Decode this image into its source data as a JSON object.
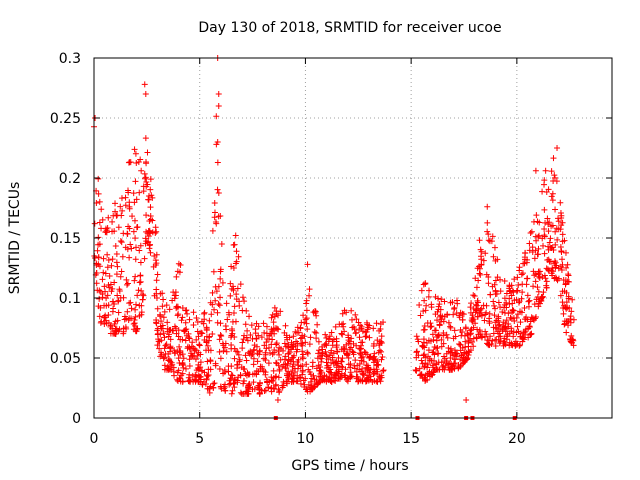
{
  "chart_data": {
    "type": "scatter",
    "title": "Day 130 of 2018, SRMTID for receiver ucoe",
    "xlabel": "GPS time / hours",
    "ylabel": "SRMTID / TECUs",
    "xlim": [
      0,
      24.5
    ],
    "ylim": [
      0,
      0.3
    ],
    "xticks": [
      0,
      5,
      10,
      15,
      20
    ],
    "xtick_labels": [
      "0",
      "5",
      "10",
      "15",
      "20"
    ],
    "yticks": [
      0,
      0.05,
      0.1,
      0.15,
      0.2,
      0.25,
      0.3
    ],
    "ytick_labels": [
      "0",
      "0.05",
      "0.1",
      "0.15",
      "0.2",
      "0.25",
      "0.3"
    ],
    "grid": true,
    "marker": "+",
    "color": "#ff0000",
    "series": [
      {
        "name": "SRMTID",
        "description_values": "Sampled envelope of the dense scatter: [hour, lower, upper] bands",
        "bands": [
          [
            0.0,
            0.12,
            0.26
          ],
          [
            0.3,
            0.08,
            0.19
          ],
          [
            0.6,
            0.07,
            0.17
          ],
          [
            1.0,
            0.07,
            0.18
          ],
          [
            1.4,
            0.07,
            0.19
          ],
          [
            1.7,
            0.08,
            0.22
          ],
          [
            2.0,
            0.07,
            0.26
          ],
          [
            2.3,
            0.09,
            0.2
          ],
          [
            2.5,
            0.15,
            0.25
          ],
          [
            2.8,
            0.12,
            0.2
          ],
          [
            3.0,
            0.06,
            0.14
          ],
          [
            3.3,
            0.04,
            0.1
          ],
          [
            3.6,
            0.04,
            0.09
          ],
          [
            4.0,
            0.03,
            0.14
          ],
          [
            4.5,
            0.03,
            0.1
          ],
          [
            5.0,
            0.03,
            0.08
          ],
          [
            5.5,
            0.02,
            0.1
          ],
          [
            5.8,
            0.03,
            0.27
          ],
          [
            6.2,
            0.02,
            0.09
          ],
          [
            6.7,
            0.02,
            0.16
          ],
          [
            7.2,
            0.02,
            0.09
          ],
          [
            7.7,
            0.02,
            0.08
          ],
          [
            8.2,
            0.02,
            0.08
          ],
          [
            8.7,
            0.02,
            0.1
          ],
          [
            9.2,
            0.03,
            0.07
          ],
          [
            9.7,
            0.03,
            0.08
          ],
          [
            10.2,
            0.02,
            0.12
          ],
          [
            10.7,
            0.03,
            0.07
          ],
          [
            11.2,
            0.03,
            0.07
          ],
          [
            11.7,
            0.03,
            0.09
          ],
          [
            12.2,
            0.03,
            0.09
          ],
          [
            12.7,
            0.03,
            0.08
          ],
          [
            13.2,
            0.03,
            0.08
          ],
          [
            13.7,
            0.03,
            0.09
          ],
          [
            15.2,
            0.04,
            0.09
          ],
          [
            15.7,
            0.03,
            0.12
          ],
          [
            16.2,
            0.04,
            0.1
          ],
          [
            16.7,
            0.04,
            0.1
          ],
          [
            17.2,
            0.04,
            0.1
          ],
          [
            17.7,
            0.05,
            0.08
          ],
          [
            18.2,
            0.07,
            0.15
          ],
          [
            18.7,
            0.06,
            0.17
          ],
          [
            19.2,
            0.06,
            0.12
          ],
          [
            19.7,
            0.06,
            0.11
          ],
          [
            20.2,
            0.06,
            0.13
          ],
          [
            20.7,
            0.07,
            0.16
          ],
          [
            21.2,
            0.1,
            0.2
          ],
          [
            21.7,
            0.12,
            0.22
          ],
          [
            22.0,
            0.1,
            0.19
          ],
          [
            22.3,
            0.07,
            0.14
          ],
          [
            22.7,
            0.06,
            0.1
          ]
        ],
        "outliers": [
          [
            2.4,
            0.278
          ],
          [
            2.45,
            0.27
          ],
          [
            5.85,
            0.3
          ],
          [
            5.9,
            0.27
          ],
          [
            5.9,
            0.26
          ],
          [
            5.85,
            0.23
          ],
          [
            10.1,
            0.128
          ],
          [
            18.6,
            0.176
          ],
          [
            20.9,
            0.206
          ],
          [
            21.9,
            0.225
          ],
          [
            17.6,
            0.015
          ],
          [
            8.7,
            0.015
          ],
          [
            0.05,
            0.25
          ]
        ]
      }
    ],
    "zero_markers": [
      8.6,
      15.3,
      17.6,
      17.9,
      19.9
    ]
  }
}
